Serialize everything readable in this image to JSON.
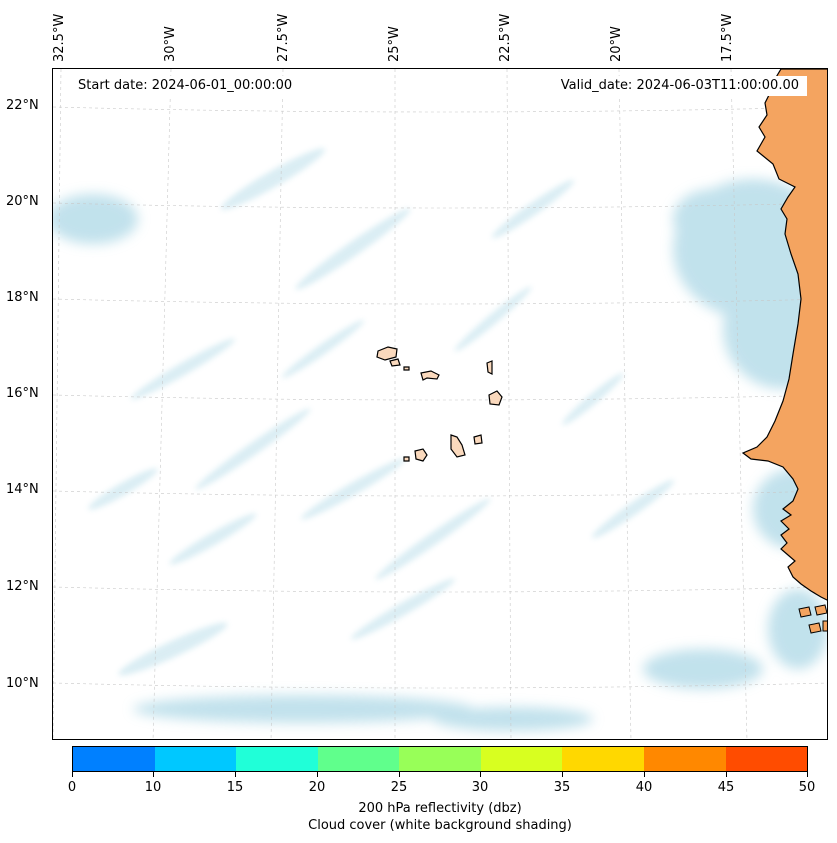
{
  "header": {
    "start_date": "Start date: 2024-06-01_00:00:00",
    "valid_date": "Valid_date: 2024-06-03T11:00:00.00"
  },
  "map": {
    "projection": "lambert-conformal",
    "lon_labels": [
      "32.5°W",
      "30°W",
      "27.5°W",
      "25°W",
      "22.5°W",
      "20°W",
      "17.5°W"
    ],
    "lat_labels": [
      "22°N",
      "20°N",
      "18°N",
      "16°N",
      "14°N",
      "12°N",
      "10°N"
    ],
    "colors": {
      "land": "#f4a460",
      "island_fill": "#fad9bd",
      "cloud": "#add8e6",
      "coastline": "#000000",
      "gridline": "#c8c8c8"
    }
  },
  "colorbar": {
    "ticks": [
      "0",
      "10",
      "15",
      "20",
      "25",
      "30",
      "35",
      "40",
      "45",
      "50"
    ],
    "colors": [
      "#0080ff",
      "#00c8ff",
      "#20ffd8",
      "#60ff8c",
      "#98ff58",
      "#d8ff20",
      "#ffd800",
      "#ff8800",
      "#ff4c00"
    ],
    "label": "200 hPa reflectivity (dbz)",
    "sublabel": "Cloud cover (white background shading)"
  }
}
